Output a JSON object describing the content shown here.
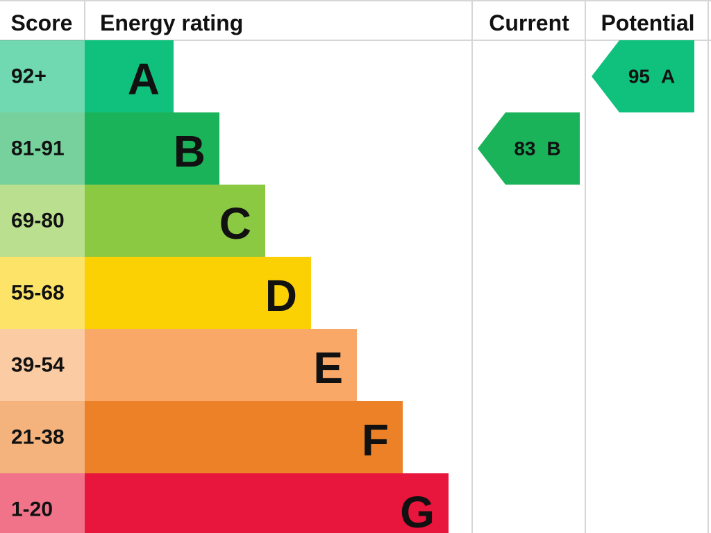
{
  "header": {
    "score": "Score",
    "rating": "Energy rating",
    "current": "Current",
    "potential": "Potential"
  },
  "rows": [
    {
      "score": "92+",
      "letter": "A",
      "color": "#10c07d"
    },
    {
      "score": "81-91",
      "letter": "B",
      "color": "#1bb35a"
    },
    {
      "score": "69-80",
      "letter": "C",
      "color": "#8cc942"
    },
    {
      "score": "55-68",
      "letter": "D",
      "color": "#fcd103"
    },
    {
      "score": "39-54",
      "letter": "E",
      "color": "#f9a868"
    },
    {
      "score": "21-38",
      "letter": "F",
      "color": "#ed8127"
    },
    {
      "score": "1-20",
      "letter": "G",
      "color": "#e8153c"
    }
  ],
  "current": {
    "value": 83,
    "letter": "B"
  },
  "potential": {
    "value": 95,
    "letter": "A"
  }
}
